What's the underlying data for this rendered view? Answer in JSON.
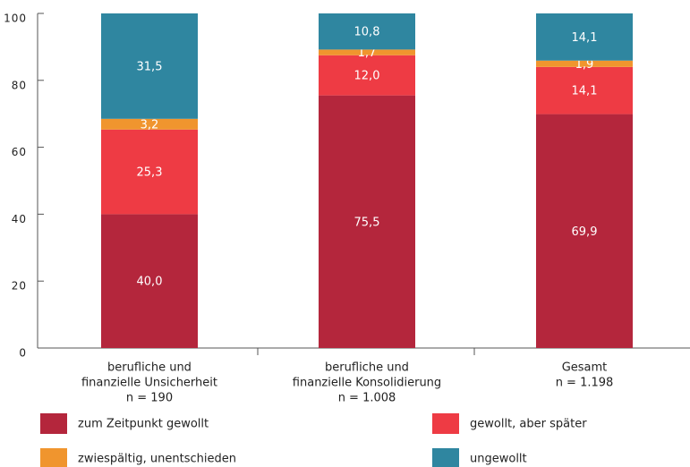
{
  "chart_data": {
    "type": "stacked_bar",
    "categories": [
      [
        "berufliche und",
        "finanzielle Unsicherheit",
        "n = 190"
      ],
      [
        "berufliche und",
        "finanzielle Konsolidierung",
        "n = 1.008"
      ],
      [
        "Gesamt",
        "n = 1.198"
      ]
    ],
    "series": [
      {
        "name": "zum Zeitpunkt gewollt",
        "color": "#b4263c",
        "values": [
          40.0,
          75.5,
          69.9
        ],
        "value_labels": [
          "40,0",
          "75,5",
          "69,9"
        ]
      },
      {
        "name": "gewollt, aber später",
        "color": "#ee3b44",
        "values": [
          25.3,
          12.0,
          14.1
        ],
        "value_labels": [
          "25,3",
          "12,0",
          "14,1"
        ]
      },
      {
        "name": "zwiespältig, unentschieden",
        "color": "#f0952e",
        "values": [
          3.2,
          1.7,
          1.9
        ],
        "value_labels": [
          "3,2",
          "1,7",
          "1,9"
        ]
      },
      {
        "name": "ungewollt",
        "color": "#2f86a0",
        "values": [
          31.5,
          10.8,
          14.1
        ],
        "value_labels": [
          "31,5",
          "10,8",
          "14,1"
        ]
      }
    ],
    "ylim": [
      0,
      100
    ],
    "yticks": [
      0,
      20,
      40,
      60,
      80,
      100
    ]
  }
}
